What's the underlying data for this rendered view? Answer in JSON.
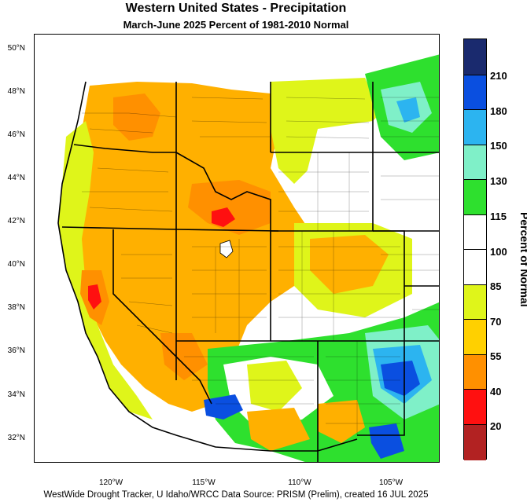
{
  "title": "Western United States - Precipitation",
  "subtitle": "March-June 2025  Percent of 1981-2010 Normal",
  "footer": "WestWide Drought Tracker, U Idaho/WRCC Data Source: PRISM (Prelim), created 16 JUL 2025",
  "lat_labels": [
    "50°N",
    "48°N",
    "46°N",
    "44°N",
    "42°N",
    "40°N",
    "38°N",
    "36°N",
    "34°N",
    "32°N"
  ],
  "lon_labels": [
    "120°W",
    "115°W",
    "110°W",
    "105°W"
  ],
  "colorbar": {
    "title": "Percent of Normal",
    "labels": [
      "210",
      "180",
      "150",
      "130",
      "115",
      "100",
      "85",
      "70",
      "55",
      "40",
      "20"
    ],
    "colors": [
      "#1a2a6e",
      "#0a4fe0",
      "#2cb4f0",
      "#7ff0c8",
      "#2ee02e",
      "#ffffff",
      "#ffffff",
      "#dff51a",
      "#ffd000",
      "#ff9000",
      "#ff1010",
      "#b22222"
    ]
  },
  "palette": {
    "dark_red": "#b22222",
    "red": "#ff1010",
    "orange": "#ff9000",
    "gold": "#ffd000",
    "yellow": "#dff51a",
    "white": "#ffffff",
    "green": "#2ee02e",
    "aqua": "#7ff0c8",
    "sky": "#2cb4f0",
    "blue": "#0a4fe0",
    "navy": "#1a2a6e"
  }
}
